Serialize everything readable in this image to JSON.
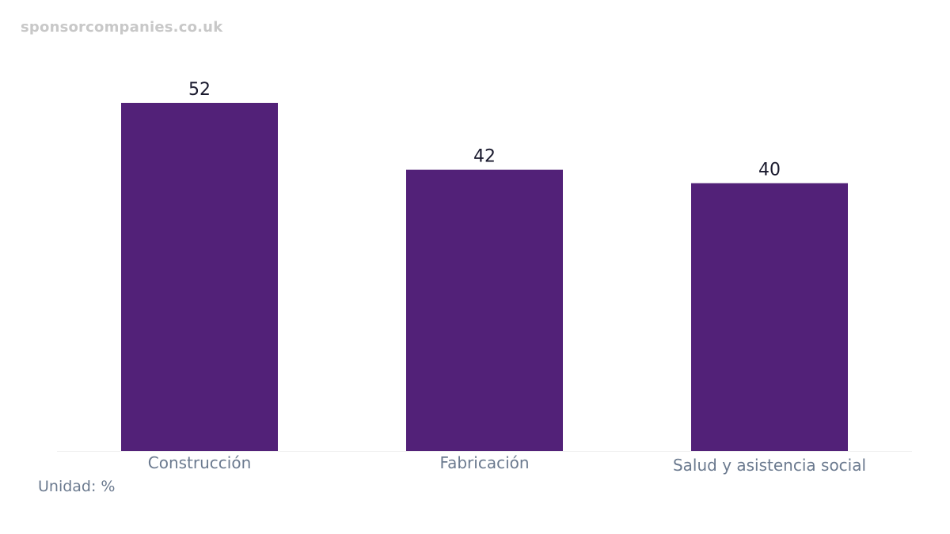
{
  "watermark": "sponsorcompanies.co.uk",
  "unit_label": "Unidad: %",
  "colors": {
    "bar": "#522178",
    "baseline": "#eeeeee"
  },
  "chart_data": {
    "type": "bar",
    "categories": [
      "Construcción",
      "Fabricación",
      "Salud y asistencia social"
    ],
    "values": [
      52,
      42,
      40
    ],
    "title": "",
    "xlabel": "",
    "ylabel": "",
    "ylim": [
      0,
      52
    ],
    "grid": false,
    "legend": "none"
  }
}
